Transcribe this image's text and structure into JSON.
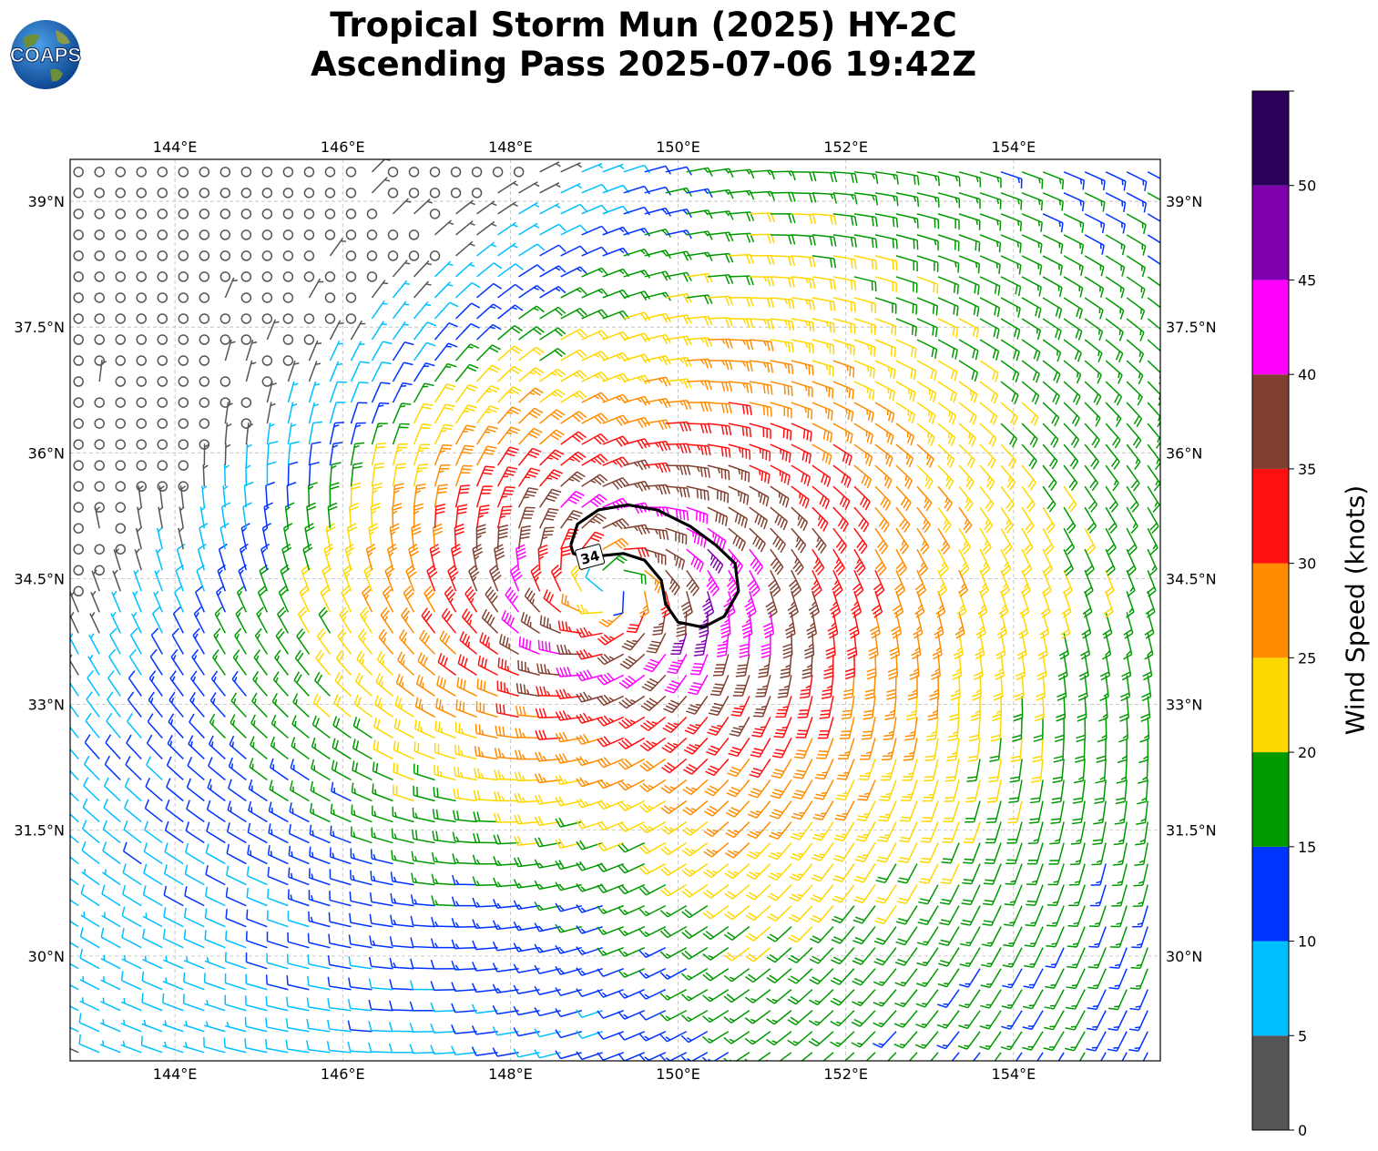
{
  "title": {
    "line1": "Tropical Storm Mun (2025) HY-2C",
    "line2": "Ascending Pass 2025-07-06 19:42Z"
  },
  "logo": {
    "text": "COAPS",
    "icon": "globe-icon"
  },
  "map": {
    "lon_range": [
      142.75,
      155.75
    ],
    "lat_range": [
      28.75,
      39.5
    ],
    "lon_ticks": [
      {
        "value": 144,
        "label": "144°E"
      },
      {
        "value": 146,
        "label": "146°E"
      },
      {
        "value": 148,
        "label": "148°E"
      },
      {
        "value": 150,
        "label": "150°E"
      },
      {
        "value": 152,
        "label": "152°E"
      },
      {
        "value": 154,
        "label": "154°E"
      }
    ],
    "lat_ticks": [
      {
        "value": 39,
        "label": "39°N"
      },
      {
        "value": 37.5,
        "label": "37.5°N"
      },
      {
        "value": 36,
        "label": "36°N"
      },
      {
        "value": 34.5,
        "label": "34.5°N"
      },
      {
        "value": 33,
        "label": "33°N"
      },
      {
        "value": 31.5,
        "label": "31.5°N"
      },
      {
        "value": 30,
        "label": "30°N"
      }
    ],
    "grid": true,
    "storm_center": {
      "lon": 149.2,
      "lat": 34.4
    },
    "contour": {
      "label": "34",
      "color": "#000000",
      "points": [
        [
          148.72,
          34.9
        ],
        [
          148.8,
          35.15
        ],
        [
          149.05,
          35.32
        ],
        [
          149.4,
          35.38
        ],
        [
          149.75,
          35.32
        ],
        [
          150.15,
          35.12
        ],
        [
          150.45,
          34.9
        ],
        [
          150.68,
          34.68
        ],
        [
          150.72,
          34.35
        ],
        [
          150.55,
          34.05
        ],
        [
          150.3,
          33.92
        ],
        [
          150.0,
          33.98
        ],
        [
          149.85,
          34.2
        ],
        [
          149.8,
          34.48
        ],
        [
          149.6,
          34.72
        ],
        [
          149.35,
          34.8
        ],
        [
          149.15,
          34.78
        ],
        [
          148.9,
          34.75
        ],
        [
          148.75,
          34.8
        ],
        [
          148.72,
          34.9
        ]
      ]
    }
  },
  "colorbar": {
    "label": "Wind Speed (knots)",
    "bounds": [
      0,
      5,
      10,
      15,
      20,
      25,
      30,
      35,
      40,
      45,
      50,
      55
    ],
    "tick_labels": [
      "0",
      "5",
      "10",
      "15",
      "20",
      "25",
      "30",
      "35",
      "40",
      "45",
      "50"
    ],
    "colors": [
      "#555555",
      "#00bfff",
      "#0033ff",
      "#009900",
      "#ffd700",
      "#ff8c00",
      "#ff1010",
      "#804030",
      "#ff00ff",
      "#8000b0",
      "#2a005a"
    ]
  }
}
